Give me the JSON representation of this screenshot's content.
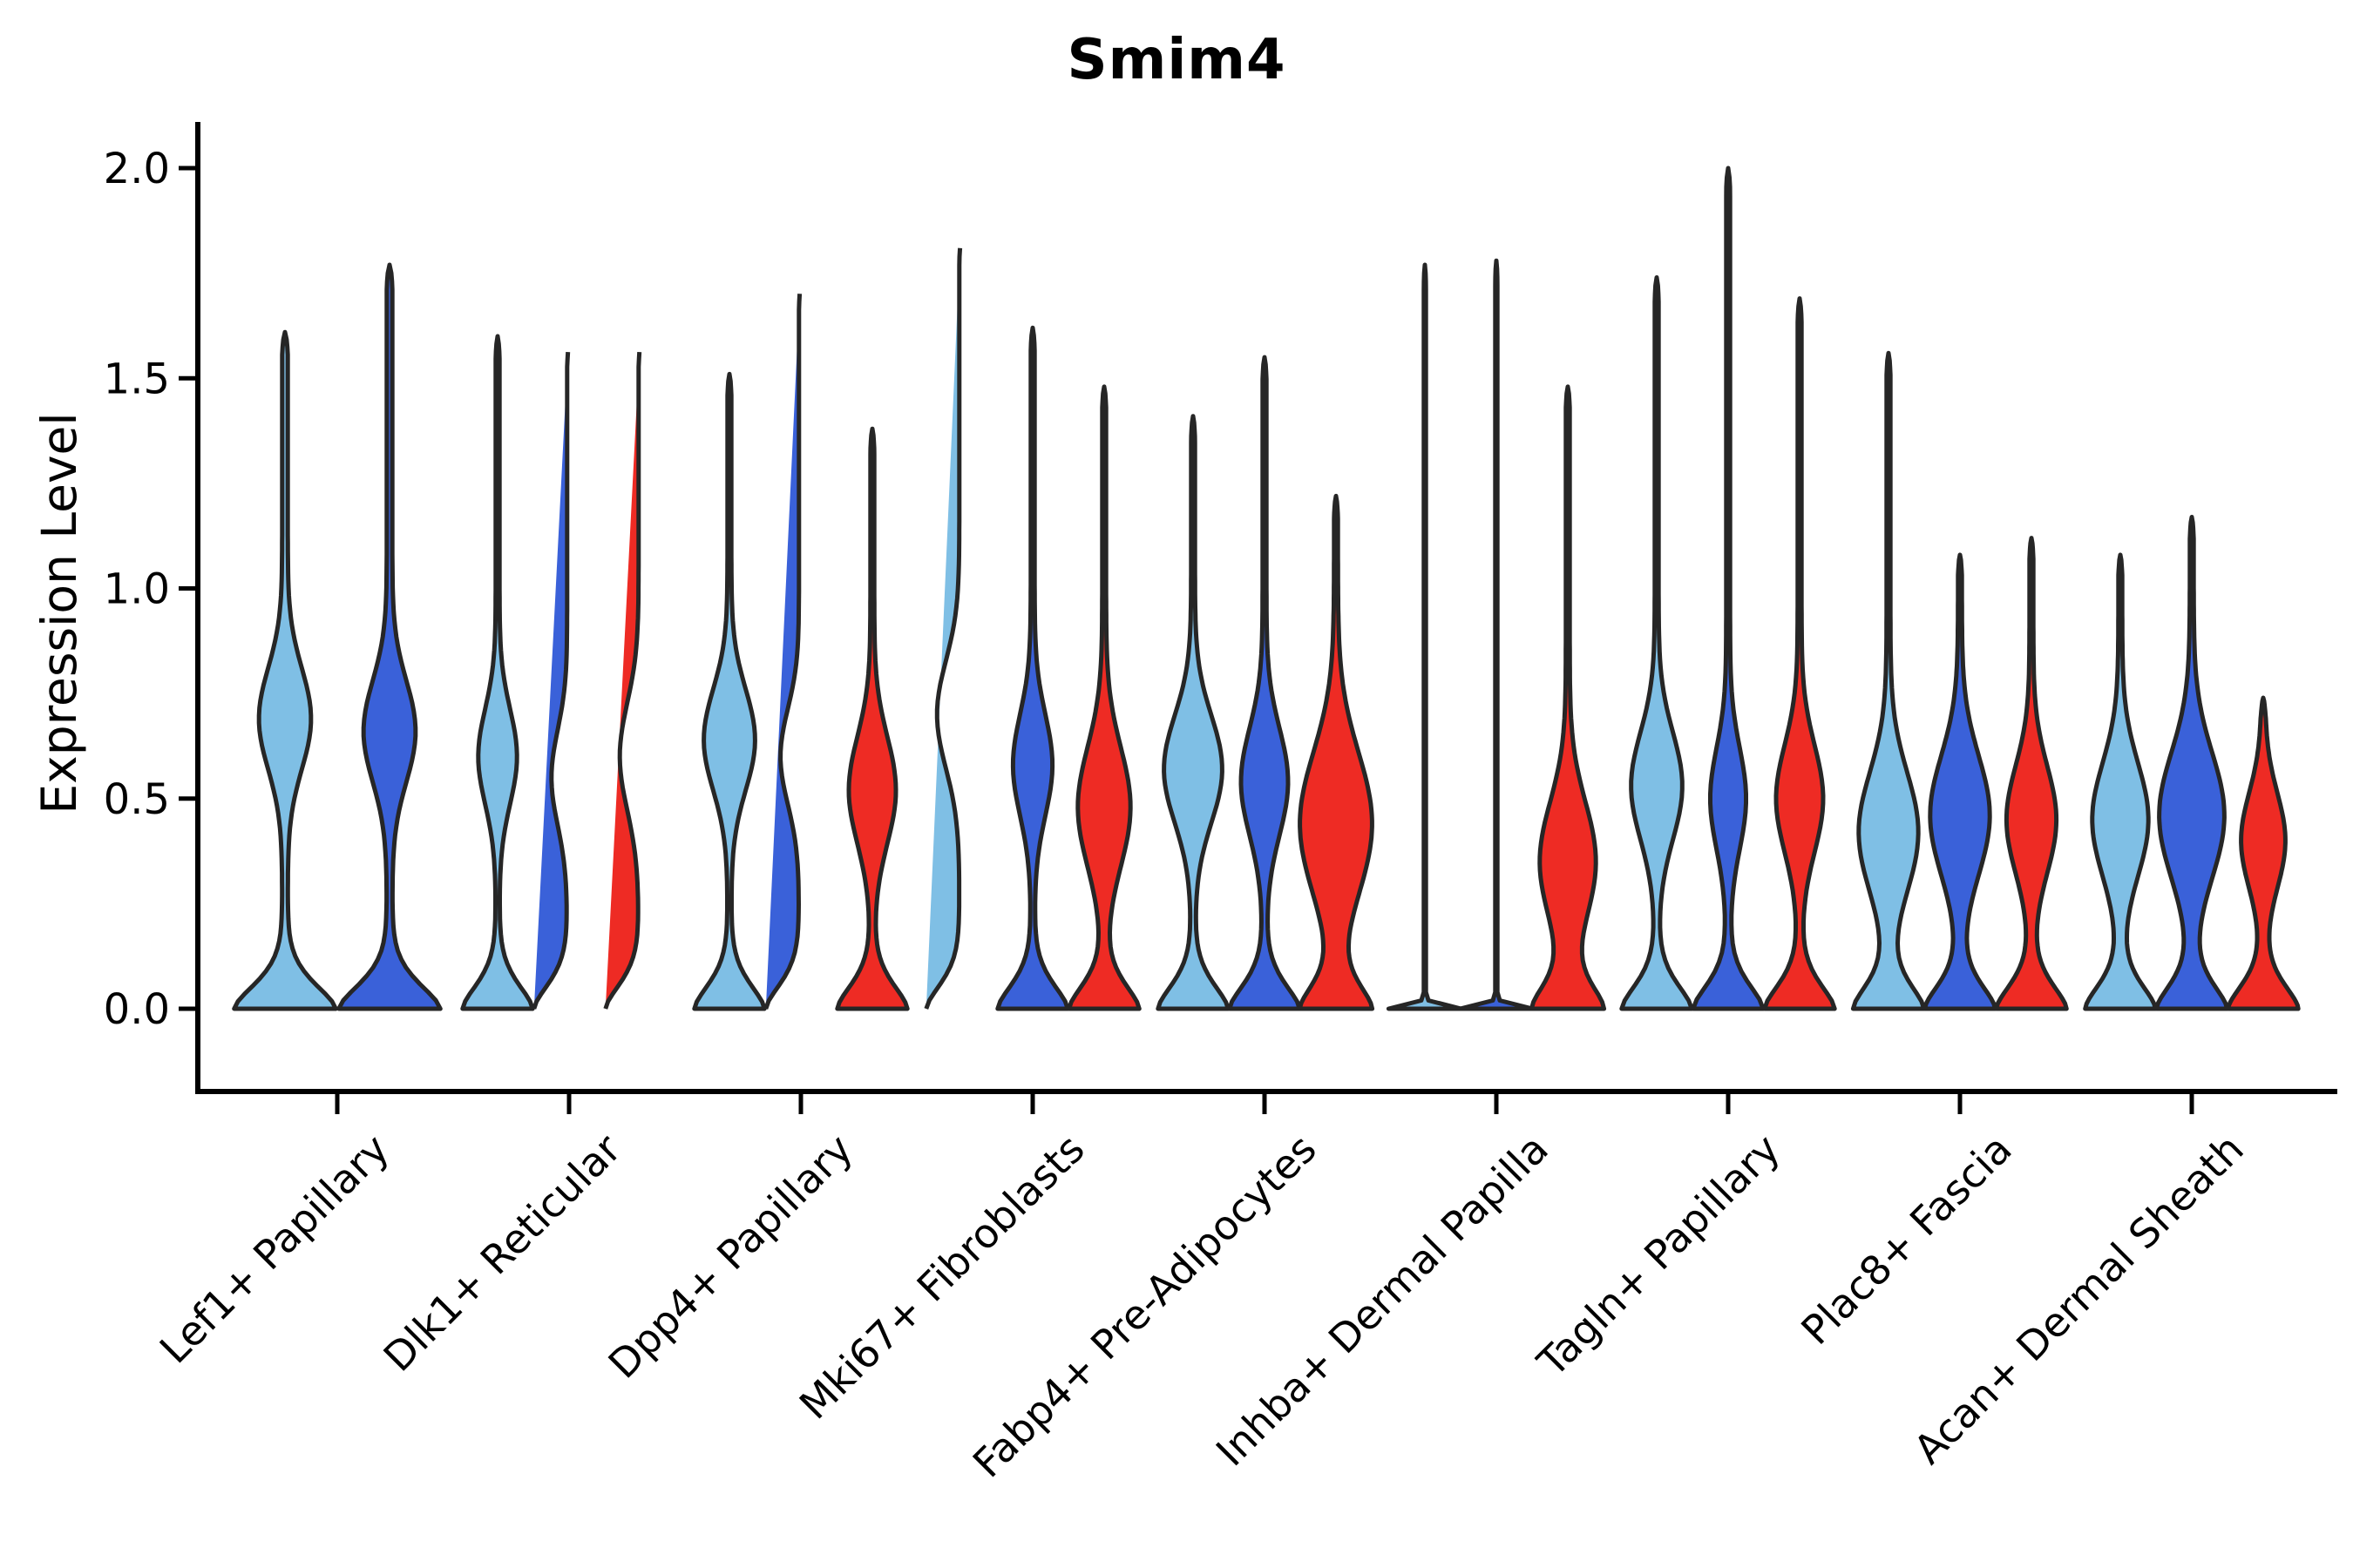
{
  "title": "Smim4",
  "y_axis": {
    "label": "Expression Level",
    "tick_labels": [
      "0.0",
      "0.5",
      "1.0",
      "1.5",
      "2.0"
    ],
    "tick_values": [
      0,
      0.5,
      1.0,
      1.5,
      2.0
    ],
    "range": [
      0,
      2.0
    ]
  },
  "palette": {
    "light_blue": "#7FBFE5",
    "dark_blue": "#3A61D9",
    "red": "#EE2B24",
    "outline": "#262626"
  },
  "chart_data": {
    "type": "violin",
    "title": "Smim4",
    "ylabel": "Expression Level",
    "ylim": [
      0,
      2.0
    ],
    "grid": false,
    "legend": "none",
    "categories": [
      "Lef1+ Papillary",
      "Dlk1+ Reticular",
      "Dpp4+ Papillary",
      "Mki67+ Fibroblasts",
      "Fabp4+ Pre-Adipocytes",
      "Inhba+ Dermal Papilla",
      "Tagln+ Papillary",
      "Plac8+ Fascia",
      "Acan+ Dermal Sheath"
    ],
    "groups": [
      {
        "category": "Lef1+ Papillary",
        "wide_pair": true,
        "violins": [
          {
            "color": "light_blue",
            "max": 1.61,
            "bulge_center": 0.69,
            "bulge_width": 0.46,
            "bulge_sigma": 0.17
          },
          {
            "color": "dark_blue",
            "max": 1.77,
            "bulge_center": 0.66,
            "bulge_width": 0.46,
            "bulge_sigma": 0.17
          }
        ]
      },
      {
        "category": "Dlk1+ Reticular",
        "violins": [
          {
            "color": "light_blue",
            "max": 1.6,
            "bulge_center": 0.6,
            "bulge_width": 0.5,
            "bulge_sigma": 0.16
          },
          {
            "color": "dark_blue",
            "max": 1.58,
            "bulge_center": 0.55,
            "bulge_width": 0.45,
            "bulge_sigma": 0.16
          },
          {
            "color": "red",
            "max": 1.58,
            "bulge_center": 0.6,
            "bulge_width": 0.54,
            "bulge_sigma": 0.18
          }
        ]
      },
      {
        "category": "Dpp4+ Papillary",
        "violins": [
          {
            "color": "light_blue",
            "max": 1.51,
            "bulge_center": 0.64,
            "bulge_width": 0.68,
            "bulge_sigma": 0.17
          },
          {
            "color": "dark_blue",
            "max": 1.72,
            "bulge_center": 0.6,
            "bulge_width": 0.53,
            "bulge_sigma": 0.16
          },
          {
            "color": "red",
            "max": 1.38,
            "bulge_center": 0.52,
            "bulge_width": 0.62,
            "bulge_sigma": 0.18
          }
        ]
      },
      {
        "category": "Mki67+ Fibroblasts",
        "violins": [
          {
            "color": "light_blue",
            "max": 1.83,
            "bulge_center": 0.7,
            "bulge_width": 0.64,
            "bulge_sigma": 0.18
          },
          {
            "color": "dark_blue",
            "max": 1.62,
            "bulge_center": 0.58,
            "bulge_width": 0.51,
            "bulge_sigma": 0.17
          },
          {
            "color": "red",
            "max": 1.48,
            "bulge_center": 0.48,
            "bulge_width": 0.7,
            "bulge_sigma": 0.2
          }
        ]
      },
      {
        "category": "Fabp4+ Pre-Adipocytes",
        "violins": [
          {
            "color": "light_blue",
            "max": 1.41,
            "bulge_center": 0.57,
            "bulge_width": 0.78,
            "bulge_sigma": 0.18
          },
          {
            "color": "dark_blue",
            "max": 1.55,
            "bulge_center": 0.54,
            "bulge_width": 0.62,
            "bulge_sigma": 0.18
          },
          {
            "color": "red",
            "max": 1.22,
            "bulge_center": 0.44,
            "bulge_width": 0.98,
            "bulge_sigma": 0.24
          }
        ]
      },
      {
        "category": "Inhba+ Dermal Papilla",
        "violins": [
          {
            "color": "light_blue",
            "max": 1.77,
            "flat": true,
            "bulge_center": 0,
            "bulge_width": 0,
            "bulge_sigma": 0.16
          },
          {
            "color": "dark_blue",
            "max": 1.78,
            "flat": true,
            "bulge_center": 0,
            "bulge_width": 0,
            "bulge_sigma": 0.16
          },
          {
            "color": "red",
            "max": 1.48,
            "bulge_center": 0.35,
            "bulge_width": 0.75,
            "bulge_sigma": 0.2
          }
        ]
      },
      {
        "category": "Tagln+ Papillary",
        "violins": [
          {
            "color": "light_blue",
            "max": 1.74,
            "bulge_center": 0.53,
            "bulge_width": 0.68,
            "bulge_sigma": 0.18
          },
          {
            "color": "dark_blue",
            "max": 2.0,
            "bulge_center": 0.5,
            "bulge_width": 0.46,
            "bulge_sigma": 0.17
          },
          {
            "color": "red",
            "max": 1.69,
            "bulge_center": 0.5,
            "bulge_width": 0.62,
            "bulge_sigma": 0.18
          }
        ]
      },
      {
        "category": "Plac8+ Fascia",
        "violins": [
          {
            "color": "light_blue",
            "max": 1.56,
            "bulge_center": 0.42,
            "bulge_width": 0.8,
            "bulge_sigma": 0.2
          },
          {
            "color": "dark_blue",
            "max": 1.08,
            "bulge_center": 0.46,
            "bulge_width": 0.8,
            "bulge_sigma": 0.2
          },
          {
            "color": "red",
            "max": 1.12,
            "bulge_center": 0.45,
            "bulge_width": 0.66,
            "bulge_sigma": 0.18
          }
        ]
      },
      {
        "category": "Acan+ Dermal Sheath",
        "violins": [
          {
            "color": "light_blue",
            "max": 1.08,
            "bulge_center": 0.45,
            "bulge_width": 0.75,
            "bulge_sigma": 0.19
          },
          {
            "color": "dark_blue",
            "max": 1.17,
            "bulge_center": 0.46,
            "bulge_width": 0.88,
            "bulge_sigma": 0.21
          },
          {
            "color": "red",
            "max": 0.74,
            "bulge_center": 0.4,
            "bulge_width": 0.58,
            "bulge_sigma": 0.16
          }
        ]
      }
    ]
  }
}
